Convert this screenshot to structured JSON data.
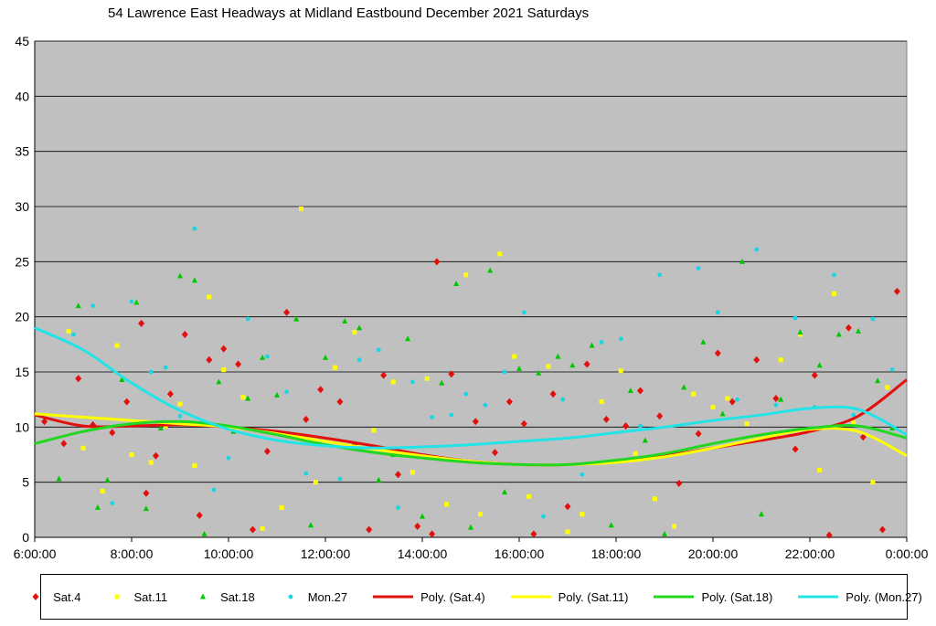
{
  "chart_data": {
    "type": "scatter",
    "title": "54 Lawrence East Headways at Midland Eastbound December 2021  Saturdays",
    "xlabel": "",
    "ylabel": "",
    "xlim": [
      6,
      24
    ],
    "ylim": [
      0,
      45
    ],
    "x_ticks": [
      "6:00:00",
      "8:00:00",
      "10:00:00",
      "12:00:00",
      "14:00:00",
      "16:00:00",
      "18:00:00",
      "20:00:00",
      "22:00:00",
      "0:00:00"
    ],
    "y_ticks": [
      "0",
      "5",
      "10",
      "15",
      "20",
      "25",
      "30",
      "35",
      "40",
      "45"
    ],
    "grid": true,
    "legend_position": "bottom",
    "background": "#c0c0c0",
    "series": [
      {
        "name": "Sat.4",
        "kind": "points",
        "marker": "diamond",
        "color": "#e2100d",
        "x": [
          6.2,
          6.6,
          6.9,
          7.2,
          7.6,
          7.9,
          8.2,
          8.3,
          8.5,
          8.8,
          9.1,
          9.4,
          9.6,
          9.9,
          10.2,
          10.5,
          10.8,
          11.2,
          11.6,
          11.9,
          12.3,
          12.6,
          12.9,
          13.2,
          13.5,
          13.9,
          14.2,
          14.3,
          14.6,
          15.1,
          15.5,
          15.8,
          16.1,
          16.3,
          16.7,
          17.0,
          17.4,
          17.8,
          18.2,
          18.5,
          18.9,
          19.3,
          19.7,
          20.1,
          20.4,
          20.9,
          21.3,
          21.7,
          22.1,
          22.4,
          22.8,
          23.1,
          23.5,
          23.8
        ],
        "y": [
          10.5,
          8.5,
          14.4,
          10.2,
          9.5,
          12.3,
          19.4,
          4.0,
          7.4,
          13.0,
          18.4,
          2.0,
          16.1,
          17.1,
          15.7,
          0.7,
          7.8,
          20.4,
          10.7,
          13.4,
          12.3,
          8.4,
          0.7,
          14.7,
          5.7,
          1.0,
          0.3,
          25.0,
          14.8,
          10.5,
          7.7,
          12.3,
          10.3,
          0.3,
          13.0,
          2.8,
          15.7,
          10.7,
          10.1,
          13.3,
          11.0,
          4.9,
          9.4,
          16.7,
          12.3,
          16.1,
          12.6,
          8.0,
          14.7,
          0.2,
          19.0,
          9.1,
          0.7,
          22.3
        ]
      },
      {
        "name": "Sat.11",
        "kind": "points",
        "marker": "square",
        "color": "#ffff00",
        "x": [
          6.7,
          7.0,
          7.4,
          7.7,
          8.0,
          8.4,
          8.7,
          9.0,
          9.3,
          9.6,
          9.9,
          10.3,
          10.7,
          11.1,
          11.5,
          11.8,
          12.2,
          12.6,
          13.0,
          13.4,
          13.8,
          14.1,
          14.5,
          14.9,
          15.2,
          15.6,
          15.9,
          16.2,
          16.6,
          17.0,
          17.3,
          17.7,
          18.1,
          18.4,
          18.8,
          19.2,
          19.6,
          20.0,
          20.3,
          20.7,
          21.1,
          21.4,
          21.8,
          22.2,
          22.5,
          22.9,
          23.3,
          23.6
        ],
        "y": [
          18.7,
          8.1,
          4.2,
          17.4,
          7.5,
          6.8,
          10.1,
          12.1,
          6.5,
          21.8,
          15.2,
          12.7,
          0.8,
          2.7,
          29.8,
          5.0,
          15.4,
          18.6,
          9.7,
          14.1,
          5.9,
          14.4,
          3.0,
          23.8,
          2.1,
          25.7,
          16.4,
          3.7,
          15.5,
          0.5,
          2.1,
          12.3,
          15.1,
          7.6,
          3.5,
          1.0,
          13.0,
          11.8,
          12.6,
          10.3,
          9.0,
          16.1,
          18.4,
          6.1,
          22.1,
          10.4,
          5.0,
          13.6
        ]
      },
      {
        "name": "Sat.18",
        "kind": "points",
        "marker": "triangle",
        "color": "#00c800",
        "x": [
          6.5,
          6.9,
          7.3,
          7.5,
          7.8,
          8.1,
          8.3,
          8.6,
          9.0,
          9.3,
          9.5,
          9.8,
          10.1,
          10.4,
          10.7,
          11.0,
          11.4,
          11.7,
          12.0,
          12.4,
          12.7,
          13.1,
          13.4,
          13.7,
          14.0,
          14.4,
          14.7,
          15.0,
          15.4,
          15.7,
          16.0,
          16.4,
          16.8,
          17.1,
          17.5,
          17.9,
          18.3,
          18.6,
          19.0,
          19.4,
          19.8,
          20.2,
          20.6,
          21.0,
          21.4,
          21.8,
          22.2,
          22.6,
          23.0,
          23.4,
          23.7
        ],
        "y": [
          5.3,
          21.0,
          2.7,
          5.2,
          14.3,
          21.3,
          2.6,
          9.9,
          23.7,
          23.3,
          0.3,
          14.1,
          9.6,
          12.6,
          16.3,
          12.9,
          19.8,
          1.1,
          16.3,
          19.6,
          19.0,
          5.2,
          7.5,
          18.0,
          1.9,
          14.0,
          23.0,
          0.9,
          24.2,
          4.1,
          15.3,
          14.9,
          16.4,
          15.6,
          17.4,
          1.1,
          13.3,
          8.8,
          0.3,
          13.6,
          17.7,
          11.2,
          25.0,
          2.1,
          12.5,
          18.6,
          15.6,
          18.4,
          18.7,
          14.2,
          9.9
        ]
      },
      {
        "name": "Mon.27",
        "kind": "points",
        "marker": "circle",
        "color": "#19d6e3",
        "x": [
          6.8,
          7.2,
          7.6,
          8.0,
          8.4,
          8.7,
          9.0,
          9.3,
          9.7,
          10.0,
          10.4,
          10.8,
          11.2,
          11.6,
          11.9,
          12.3,
          12.7,
          13.1,
          13.5,
          13.8,
          14.2,
          14.6,
          14.9,
          15.3,
          15.7,
          16.1,
          16.5,
          16.9,
          17.3,
          17.7,
          18.1,
          18.5,
          18.9,
          19.3,
          19.7,
          20.1,
          20.5,
          20.9,
          21.3,
          21.7,
          22.1,
          22.5,
          22.9,
          23.3,
          23.7
        ],
        "y": [
          18.4,
          21.0,
          3.1,
          21.4,
          15.0,
          15.4,
          11.0,
          28.0,
          4.3,
          7.2,
          19.8,
          16.4,
          13.2,
          5.8,
          8.8,
          5.3,
          16.1,
          17.0,
          2.7,
          14.1,
          10.9,
          11.1,
          13.0,
          12.0,
          15.0,
          20.4,
          1.9,
          12.5,
          5.7,
          17.7,
          18.0,
          10.1,
          23.8,
          7.7,
          24.4,
          20.4,
          12.5,
          26.1,
          12.0,
          19.9,
          11.8,
          23.8,
          11.1,
          19.8,
          15.2
        ]
      },
      {
        "name": "Poly. (Sat.4)",
        "kind": "line",
        "color": "#e2100d",
        "x": [
          6,
          7,
          8,
          9,
          10,
          11,
          12,
          13,
          14,
          15,
          16,
          17,
          18,
          19,
          20,
          21,
          22,
          23,
          24
        ],
        "y": [
          11.1,
          10.1,
          10.1,
          10.2,
          10.0,
          9.6,
          9.0,
          8.3,
          7.5,
          6.9,
          6.6,
          6.6,
          6.9,
          7.4,
          8.1,
          8.8,
          9.6,
          11.0,
          14.3
        ]
      },
      {
        "name": "Poly. (Sat.11)",
        "kind": "line",
        "color": "#ffff00",
        "x": [
          6,
          7,
          8,
          9,
          10,
          11,
          12,
          13,
          14,
          15,
          16,
          17,
          18,
          19,
          20,
          21,
          22,
          23,
          24
        ],
        "y": [
          11.2,
          10.9,
          10.6,
          10.3,
          10.0,
          9.4,
          8.7,
          8.0,
          7.4,
          6.9,
          6.6,
          6.6,
          6.8,
          7.3,
          8.1,
          9.0,
          9.8,
          9.6,
          7.4
        ]
      },
      {
        "name": "Poly. (Sat.18)",
        "kind": "line",
        "color": "#22d622",
        "x": [
          6,
          7,
          8,
          9,
          10,
          11,
          12,
          13,
          14,
          15,
          16,
          17,
          18,
          19,
          20,
          21,
          22,
          23,
          24
        ],
        "y": [
          8.5,
          9.6,
          10.3,
          10.5,
          10.1,
          9.3,
          8.4,
          7.7,
          7.2,
          6.8,
          6.6,
          6.6,
          7.0,
          7.6,
          8.5,
          9.3,
          9.9,
          10.1,
          9.0
        ]
      },
      {
        "name": "Poly. (Mon.27)",
        "kind": "line",
        "color": "#22e3e8",
        "x": [
          6,
          7,
          8,
          9,
          10,
          11,
          12,
          13,
          14,
          15,
          16,
          17,
          18,
          19,
          20,
          21,
          22,
          23,
          24
        ],
        "y": [
          19.0,
          17.0,
          14.0,
          11.5,
          9.8,
          8.8,
          8.3,
          8.1,
          8.2,
          8.4,
          8.7,
          9.0,
          9.5,
          10.0,
          10.6,
          11.1,
          11.7,
          11.6,
          9.3
        ]
      }
    ]
  }
}
